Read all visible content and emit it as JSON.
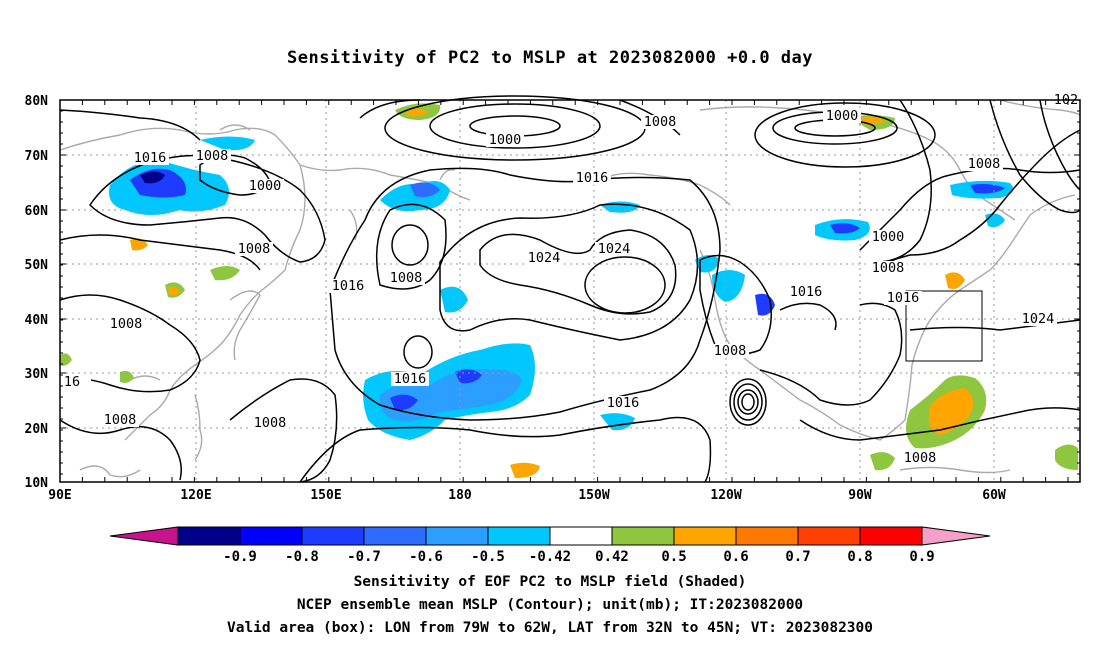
{
  "title": "Sensitivity of PC2 to MSLP at 2023082000 +0.0 day",
  "map": {
    "lat_labels": [
      "80N",
      "70N",
      "60N",
      "50N",
      "40N",
      "30N",
      "20N",
      "10N"
    ],
    "lon_labels": [
      "90E",
      "120E",
      "150E",
      "180",
      "150W",
      "120W",
      "90W",
      "60W"
    ],
    "contour_labels": [
      {
        "text": "1016"
      },
      {
        "text": "1008"
      },
      {
        "text": "1000"
      },
      {
        "text": "1000"
      },
      {
        "text": "1008"
      },
      {
        "text": "1000"
      },
      {
        "text": "1016"
      },
      {
        "text": "1008"
      },
      {
        "text": "1024"
      },
      {
        "text": "1024"
      },
      {
        "text": "1008"
      },
      {
        "text": "1016"
      },
      {
        "text": "1008"
      },
      {
        "text": "1008"
      },
      {
        "text": "1016"
      },
      {
        "text": "1008"
      },
      {
        "text": "1016"
      },
      {
        "text": "1008"
      },
      {
        "text": "1016"
      },
      {
        "text": "1008"
      },
      {
        "text": "1000"
      },
      {
        "text": "1008"
      },
      {
        "text": "1016"
      },
      {
        "text": "1024"
      },
      {
        "text": "1008"
      },
      {
        "text": "16"
      },
      {
        "text": "102"
      }
    ],
    "box": {
      "lon_from": "79W",
      "lon_to": "62W",
      "lat_from": "32N",
      "lat_to": "45N"
    }
  },
  "colorbar": {
    "labels": [
      "-0.9",
      "-0.8",
      "-0.7",
      "-0.6",
      "-0.5",
      "-0.42",
      "0.42",
      "0.5",
      "0.6",
      "0.7",
      "0.8",
      "0.9"
    ],
    "colors": [
      "#00008b",
      "#0000ff",
      "#1e3cff",
      "#2e6bff",
      "#2b9eff",
      "#00c8ff",
      "#ffffff",
      "#8ec63f",
      "#ffa500",
      "#ff7800",
      "#ff4000",
      "#ff0000"
    ],
    "low_end_color": "#c8148c",
    "high_end_color": "#f5a0c8"
  },
  "footer": {
    "line1": "Sensitivity of EOF PC2 to MSLP field (Shaded)",
    "line2": "NCEP ensemble mean MSLP (Contour); unit(mb); IT:2023082000",
    "line3": "Valid area (box): LON from 79W to 62W, LAT from 32N to 45N; VT: 2023082300"
  }
}
